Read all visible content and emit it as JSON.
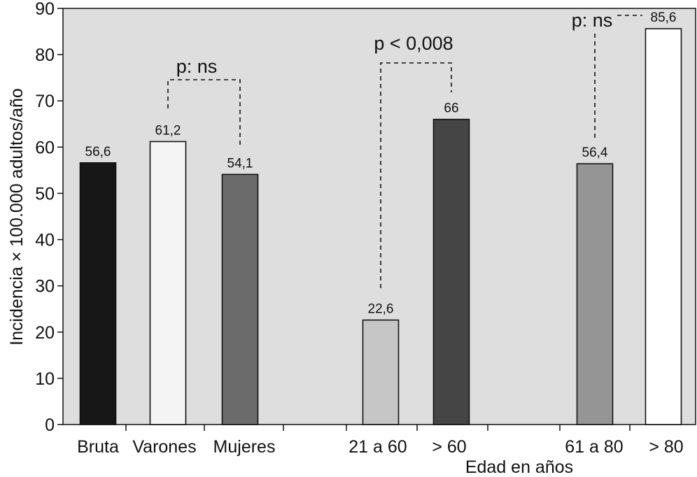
{
  "chart_data": {
    "type": "bar",
    "ylabel": "Incidencia × 100.000 adultos/año",
    "xlabel": "Edad en años",
    "ylim": [
      0,
      90
    ],
    "yticks": [
      0,
      10,
      20,
      30,
      40,
      50,
      60,
      70,
      80,
      90
    ],
    "grid": false,
    "legend": "none",
    "plot_background": "#dedede",
    "bars": [
      {
        "category": "Bruta",
        "value": 56.6,
        "label": "56,6",
        "color": "#171717"
      },
      {
        "category": "Varones",
        "value": 61.2,
        "label": "61,2",
        "color": "#f4f4f4"
      },
      {
        "category": "Mujeres",
        "value": 54.1,
        "label": "54,1",
        "color": "#6b6b6b"
      },
      {
        "category": "21 a 60",
        "value": 22.6,
        "label": "22,6",
        "color": "#c6c6c6"
      },
      {
        "category": "> 60",
        "value": 66,
        "label": "66",
        "color": "#454545"
      },
      {
        "category": "61 a 80",
        "value": 56.4,
        "label": "56,4",
        "color": "#959595"
      },
      {
        "category": "> 80",
        "value": 85.6,
        "label": "85,6",
        "color": "#ffffff"
      }
    ],
    "annotations": [
      {
        "text": "p: ns",
        "between": [
          "Varones",
          "Mujeres"
        ]
      },
      {
        "text": "p < 0,008",
        "between": [
          "21 a 60",
          "> 60"
        ]
      },
      {
        "text": "p: ns",
        "between": [
          "61 a 80",
          "> 80"
        ]
      }
    ]
  }
}
